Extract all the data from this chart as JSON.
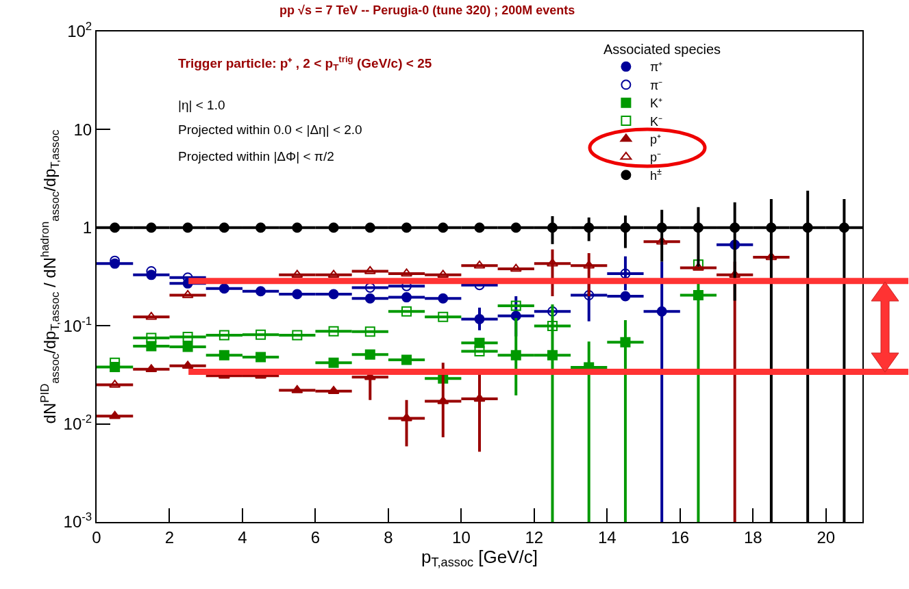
{
  "chart_data": {
    "type": "scatter",
    "title": "pp √s = 7 TeV -- Perugia-0 (tune 320) ; 200M events",
    "xlabel": "p$_{T,assoc}$ [GeV/c]",
    "ylabel": "dN$^{PID}$$_{assoc}$/dp$_{T,assoc}$ / dN$^{hadron}$$_{assoc}$/dp$_{T,assoc}$",
    "legend_title": "Associated species",
    "annotations": [
      "Trigger particle: p⁺ , 2 < p$_{T}$$^{trig}$ (GeV/c) < 25",
      "|η| < 1.0",
      "Projected within 0.0 < |Δη| < 2.0",
      "Projected within |ΔΦ| < π/2"
    ],
    "x": [
      0.5,
      1.5,
      2.5,
      3.5,
      4.5,
      5.5,
      6.5,
      7.5,
      8.5,
      9.5,
      10.5,
      11.5,
      12.5,
      13.5,
      14.5,
      15.5,
      16.5,
      17.5,
      18.5,
      19.5,
      20.5
    ],
    "series": [
      {
        "name": "π⁺",
        "color": "#000099",
        "marker": "circle",
        "xerrors": [
          0.5,
          0.5,
          0.5,
          0.5,
          0.5,
          0.5,
          0.5,
          0.5,
          0.5,
          0.5,
          0.5,
          0.5,
          null,
          null,
          0.5,
          0.5,
          null,
          0.5,
          null,
          null,
          null
        ],
        "values": [
          0.43,
          0.33,
          0.27,
          0.24,
          0.225,
          0.21,
          0.21,
          0.19,
          0.195,
          0.19,
          0.117,
          0.126,
          null,
          null,
          0.2,
          0.14,
          null,
          0.67,
          null,
          null,
          null
        ],
        "errors": [
          null,
          null,
          null,
          null,
          null,
          null,
          null,
          null,
          null,
          null,
          [
            0.09,
            0.153
          ],
          [
            0.078,
            0.2
          ],
          null,
          null,
          null,
          [
            0.001,
            0.45
          ],
          null,
          null,
          null,
          null,
          null
        ]
      },
      {
        "name": "π⁻",
        "color": "#000099",
        "marker": "circle-open",
        "xerrors": [
          null,
          null,
          0.5,
          null,
          null,
          null,
          null,
          0.5,
          0.5,
          null,
          0.5,
          null,
          0.5,
          0.5,
          0.5,
          null,
          null,
          null,
          null,
          null,
          null
        ],
        "values": [
          0.46,
          0.36,
          0.31,
          null,
          null,
          null,
          null,
          0.245,
          0.254,
          null,
          0.26,
          null,
          0.14,
          0.205,
          0.34,
          null,
          null,
          null,
          null,
          null,
          null
        ],
        "errors": [
          null,
          null,
          null,
          null,
          null,
          null,
          null,
          null,
          null,
          null,
          null,
          null,
          null,
          [
            0.111,
            0.277
          ],
          [
            0.23,
            0.51
          ],
          null,
          null,
          null,
          null,
          null,
          null
        ]
      },
      {
        "name": "K⁺",
        "color": "#009900",
        "marker": "square",
        "xerrors": [
          0.5,
          0.5,
          0.5,
          0.5,
          0.5,
          null,
          0.5,
          0.5,
          0.5,
          0.5,
          0.5,
          0.5,
          0.5,
          0.5,
          0.5,
          null,
          0.5,
          null,
          null,
          null,
          null
        ],
        "values": [
          0.038,
          0.062,
          0.061,
          0.05,
          0.048,
          null,
          0.042,
          0.051,
          0.045,
          0.029,
          0.067,
          0.05,
          0.05,
          0.0376,
          0.068,
          null,
          0.205,
          null,
          null,
          null,
          null
        ],
        "errors": [
          null,
          null,
          null,
          null,
          null,
          null,
          null,
          null,
          null,
          null,
          null,
          [
            0.0195,
            0.12
          ],
          [
            0.001,
            0.165
          ],
          [
            0.001,
            0.069
          ],
          [
            0.001,
            0.114
          ],
          null,
          [
            0.001,
            0.3
          ],
          null,
          null,
          null,
          null
        ]
      },
      {
        "name": "K⁻",
        "color": "#009900",
        "marker": "square-open",
        "xerrors": [
          null,
          0.5,
          0.5,
          0.5,
          0.5,
          0.5,
          0.5,
          0.5,
          0.5,
          0.5,
          0.5,
          0.5,
          0.5,
          null,
          null,
          null,
          null,
          null,
          null,
          null,
          null
        ],
        "values": [
          0.042,
          0.075,
          0.077,
          0.08,
          0.081,
          0.08,
          0.088,
          0.087,
          0.14,
          0.123,
          0.055,
          0.16,
          0.0995,
          null,
          null,
          null,
          0.42,
          null,
          null,
          null,
          null
        ]
      },
      {
        "name": "p⁺",
        "color": "#990000",
        "marker": "triangle",
        "xerrors": [
          0.5,
          0.5,
          0.5,
          0.5,
          0.5,
          0.5,
          0.5,
          0.5,
          0.5,
          0.5,
          0.5,
          null,
          null,
          null,
          null,
          null,
          null,
          null,
          null,
          null,
          null
        ],
        "values": [
          0.012,
          0.036,
          0.039,
          0.031,
          0.031,
          0.022,
          0.0216,
          0.03,
          0.0114,
          0.017,
          0.018,
          null,
          null,
          null,
          null,
          null,
          null,
          null,
          null,
          null,
          null
        ],
        "errors": [
          null,
          null,
          null,
          null,
          null,
          null,
          null,
          [
            0.0175,
            0.033
          ],
          [
            0.0059,
            0.0175
          ],
          [
            0.0073,
            0.042
          ],
          [
            0.0052,
            0.032
          ],
          null,
          null,
          null,
          null,
          null,
          null,
          null,
          null,
          null,
          null
        ]
      },
      {
        "name": "p⁻",
        "color": "#990000",
        "marker": "triangle-open",
        "xerrors": [
          0.5,
          0.5,
          0.5,
          null,
          null,
          0.5,
          0.5,
          0.5,
          0.5,
          0.5,
          0.5,
          0.5,
          0.5,
          0.5,
          null,
          0.5,
          0.5,
          0.5,
          0.5,
          null,
          null
        ],
        "values": [
          0.025,
          0.123,
          0.205,
          null,
          null,
          0.33,
          0.33,
          0.36,
          0.34,
          0.33,
          0.41,
          0.38,
          0.43,
          0.41,
          null,
          0.72,
          0.39,
          0.33,
          0.5,
          null,
          null
        ],
        "errors": [
          null,
          null,
          null,
          null,
          null,
          null,
          null,
          null,
          null,
          null,
          null,
          null,
          [
            0.2,
            0.6
          ],
          [
            0.2,
            0.55
          ],
          null,
          null,
          null,
          [
            0.001,
            0.45
          ],
          null,
          null,
          null
        ]
      },
      {
        "name": "h$^{±}$",
        "color": "#000000",
        "marker": "circle",
        "xerrors": [
          0.5,
          0.5,
          0.5,
          0.5,
          0.5,
          0.5,
          0.5,
          0.5,
          0.5,
          0.5,
          0.5,
          0.5,
          0.5,
          0.5,
          0.5,
          0.5,
          0.5,
          0.5,
          0.5,
          0.5,
          0.5
        ],
        "values": [
          1,
          1,
          1,
          1,
          1,
          1,
          1,
          1,
          1,
          1,
          1,
          1,
          1,
          1,
          1,
          1,
          1,
          1,
          1,
          1,
          1
        ],
        "errors": [
          null,
          null,
          null,
          null,
          null,
          null,
          null,
          null,
          null,
          null,
          null,
          null,
          [
            0.68,
            1.31
          ],
          [
            0.73,
            1.27
          ],
          [
            0.62,
            1.33
          ],
          [
            0.45,
            1.52
          ],
          [
            0.4,
            1.62
          ],
          [
            0.18,
            1.81
          ],
          [
            0.001,
            1.96
          ],
          [
            0.001,
            2.38
          ],
          [
            0.001,
            1.96
          ]
        ]
      }
    ],
    "ref_lines": [
      {
        "axis": "y",
        "value": 0.286,
        "color": "#ff3333"
      },
      {
        "axis": "y",
        "value": 0.034,
        "color": "#ff3333"
      }
    ],
    "xlim": [
      0,
      21
    ],
    "xticks": [
      0,
      2,
      4,
      6,
      8,
      10,
      12,
      14,
      16,
      18,
      20
    ],
    "ylim": [
      0.001,
      100
    ],
    "yticks": [
      {
        "value": 0.001,
        "label": "10$^{-3}$"
      },
      {
        "value": 0.01,
        "label": "10$^{-2}$"
      },
      {
        "value": 0.1,
        "label": "10$^{-1}$"
      },
      1,
      10,
      {
        "value": 100,
        "label": "10$^{2}$"
      }
    ],
    "log": "y",
    "grid": false,
    "legend": "top right"
  }
}
